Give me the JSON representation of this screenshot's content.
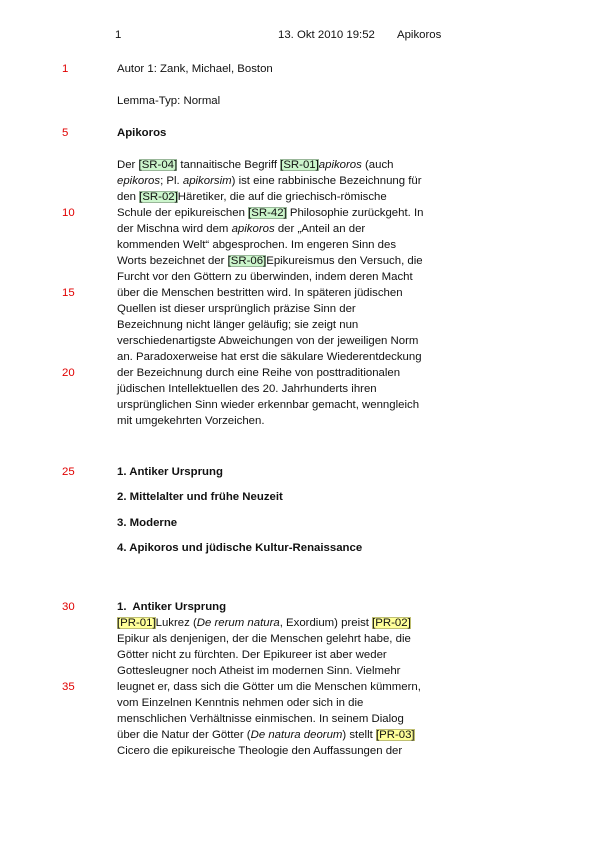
{
  "header": {
    "page": "1",
    "date": "13. Okt 2010 19:52",
    "title": "Apikoros"
  },
  "meta": [
    {
      "line_number": 1,
      "segments": [
        "Autor 1: Zank, Michael, Boston"
      ]
    },
    {
      "segments": [
        "Lemma-Typ: Normal"
      ]
    }
  ],
  "lemma": {
    "line_number": 5,
    "title": "Apikoros"
  },
  "body": [
    {
      "segments": [
        "Der ",
        {
          "text": "[SR-04]",
          "highlight": "#ccf5cc"
        },
        " tannaitische Begriff ",
        {
          "text": "[SR-01]",
          "highlight": "#ccf5cc"
        },
        {
          "text": "apikoros",
          "italic": true
        },
        " (auch"
      ]
    },
    {
      "segments": [
        {
          "text": "epikoros",
          "italic": true
        },
        "; Pl. ",
        {
          "text": "apikorsim",
          "italic": true
        },
        ") ist eine rabbinische Bezeichnung für"
      ]
    },
    {
      "segments": [
        "den ",
        {
          "text": "[SR-02]",
          "highlight": "#ccf5cc"
        },
        "Häretiker, die auf die griechisch-römische"
      ]
    },
    {
      "line_number": 10,
      "segments": [
        "Schule der epikureischen ",
        {
          "text": "[SR-42]",
          "highlight": "#ccf5cc"
        },
        " Philosophie zurückgeht. In"
      ]
    },
    {
      "segments": [
        "der Mischna wird dem ",
        {
          "text": "apikoros",
          "italic": true
        },
        " der „Anteil an der"
      ]
    },
    {
      "segments": [
        "kommenden Welt“ abgesprochen. Im engeren Sinn des"
      ]
    },
    {
      "segments": [
        "Worts bezeichnet der ",
        {
          "text": "[SR-06]",
          "highlight": "#ccf5cc"
        },
        "Epikureismus den Versuch, die"
      ]
    },
    {
      "segments": [
        "Furcht vor den Göttern zu überwinden, indem deren Macht"
      ]
    },
    {
      "line_number": 15,
      "segments": [
        "über die Menschen bestritten wird. In späteren jüdischen"
      ]
    },
    {
      "segments": [
        "Quellen ist dieser ursprünglich präzise Sinn der"
      ]
    },
    {
      "segments": [
        "Bezeichnung nicht länger geläufig; sie zeigt nun"
      ]
    },
    {
      "segments": [
        "verschiedenartigste Abweichungen von der jeweiligen Norm"
      ]
    },
    {
      "segments": [
        "an. Paradoxerweise hat erst die säkulare Wiederentdeckung"
      ]
    },
    {
      "line_number": 20,
      "segments": [
        "der Bezeichnung durch eine Reihe von posttraditionalen"
      ]
    },
    {
      "segments": [
        "jüdischen Intellektuellen des 20. Jahrhunderts ihren"
      ]
    },
    {
      "segments": [
        "ursprünglichen Sinn wieder erkennbar gemacht, wenngleich"
      ]
    },
    {
      "segments": [
        "mit umgekehrten Vorzeichen."
      ]
    }
  ],
  "toc": [
    {
      "line_number": 25,
      "segments": [
        "1. Antiker Ursprung"
      ]
    },
    {
      "segments": [
        "2. Mittelalter und frühe Neuzeit"
      ]
    },
    {
      "segments": [
        "3. Moderne"
      ]
    },
    {
      "segments": [
        "4. Apikoros und jüdische Kultur-Renaissance"
      ]
    }
  ],
  "section": {
    "line_number": 30,
    "heading": "1.  Antiker Ursprung",
    "lines": [
      {
        "segments": [
          {
            "text": "[PR-01]",
            "highlight": "#ffff99"
          },
          "Lukrez (",
          {
            "text": "De rerum natura",
            "italic": true
          },
          ", Exordium) preist ",
          {
            "text": "[PR-02]",
            "highlight": "#ffff99"
          }
        ]
      },
      {
        "segments": [
          "Epikur als denjenigen, der die Menschen gelehrt habe, die"
        ]
      },
      {
        "segments": [
          "Götter nicht zu fürchten. Der Epikureer ist aber weder"
        ]
      },
      {
        "segments": [
          "Gottesleugner noch Atheist im modernen Sinn. Vielmehr"
        ]
      },
      {
        "line_number": 35,
        "segments": [
          "leugnet er, dass sich die Götter um die Menschen kümmern,"
        ]
      },
      {
        "segments": [
          "vom Einzelnen Kenntnis nehmen oder sich in die"
        ]
      },
      {
        "segments": [
          "menschlichen Verhältnisse einmischen. In seinem Dialog"
        ]
      },
      {
        "segments": [
          "über die Natur der Götter (",
          {
            "text": "De natura deorum",
            "italic": true
          },
          ") stellt ",
          {
            "text": "[PR-03]",
            "highlight": "#ffff99"
          }
        ]
      },
      {
        "segments": [
          "Cicero die epikureische Theologie den Auffassungen der"
        ]
      }
    ]
  }
}
